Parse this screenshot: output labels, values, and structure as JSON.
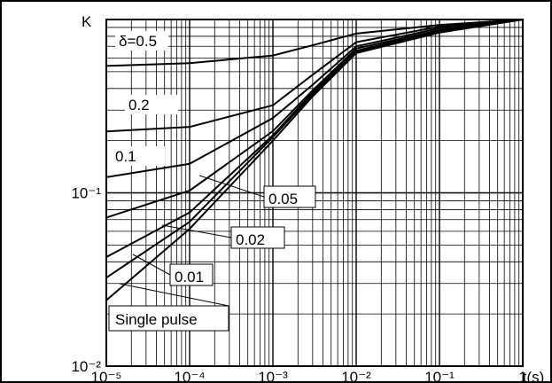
{
  "chart_data": {
    "type": "line",
    "y_label": "K",
    "x_label": "t(s)",
    "log_x": true,
    "log_y": true,
    "grid": true,
    "x": [
      1e-05,
      0.0001,
      0.001,
      0.003,
      0.01,
      0.1,
      1
    ],
    "series": [
      {
        "name": "δ=0.5",
        "color": "#000000",
        "values": [
          0.54,
          0.56,
          0.62,
          0.71,
          0.83,
          0.93,
          1
        ]
      },
      {
        "name": "0.2",
        "color": "#000000",
        "values": [
          0.226,
          0.24,
          0.32,
          0.48,
          0.74,
          0.91,
          1
        ]
      },
      {
        "name": "0.1",
        "color": "#000000",
        "values": [
          0.123,
          0.147,
          0.27,
          0.42,
          0.7,
          0.89,
          1
        ]
      },
      {
        "name": "0.05",
        "color": "#000000",
        "values": [
          0.072,
          0.103,
          0.227,
          0.39,
          0.68,
          0.87,
          1
        ]
      },
      {
        "name": "0.02",
        "color": "#000000",
        "values": [
          0.0426,
          0.077,
          0.215,
          0.38,
          0.66,
          0.86,
          1
        ]
      },
      {
        "name": "0.01",
        "color": "#000000",
        "values": [
          0.0324,
          0.068,
          0.21,
          0.37,
          0.65,
          0.85,
          1
        ]
      },
      {
        "name": "Single pulse",
        "color": "#000000",
        "values": [
          0.024,
          0.062,
          0.2,
          0.36,
          0.64,
          0.84,
          1
        ]
      }
    ],
    "xlim": [
      1e-05,
      1
    ],
    "ylim": [
      0.01,
      1
    ],
    "xticks": [
      {
        "value": 1e-05,
        "label": "10⁻⁵"
      },
      {
        "value": 0.0001,
        "label": "10⁻⁴"
      },
      {
        "value": 0.001,
        "label": "10⁻³"
      },
      {
        "value": 0.01,
        "label": "10⁻²"
      },
      {
        "value": 0.1,
        "label": "10⁻¹"
      },
      1
    ],
    "yticks": [
      {
        "value": 0.01,
        "label": "10⁻²"
      },
      {
        "value": 0.1,
        "label": "10⁻¹"
      }
    ]
  }
}
